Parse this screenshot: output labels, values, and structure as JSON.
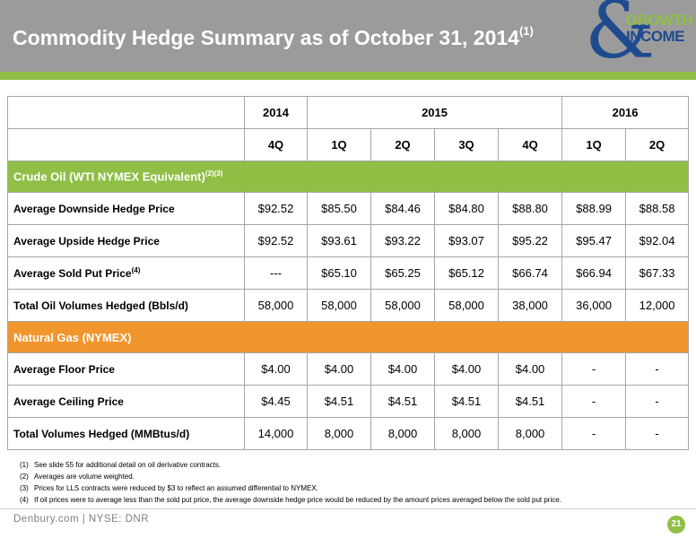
{
  "title": {
    "text": "Commodity Hedge Summary as of October 31, 2014",
    "footnote_mark": "(1)"
  },
  "logo": {
    "symbol": "&",
    "line1": "GROWTH",
    "line2": "INCOME"
  },
  "table": {
    "years": [
      "2014",
      "2015",
      "2016"
    ],
    "quarters": [
      "4Q",
      "1Q",
      "2Q",
      "3Q",
      "4Q",
      "1Q",
      "2Q"
    ],
    "oil_section": {
      "label": "Crude Oil (WTI NYMEX Equivalent)",
      "footnote_mark": "(2)(3)"
    },
    "oil_rows": [
      {
        "label": "Average Downside Hedge Price",
        "mark": "",
        "values": [
          "$92.52",
          "$85.50",
          "$84.46",
          "$84.80",
          "$88.80",
          "$88.99",
          "$88.58"
        ]
      },
      {
        "label": "Average Upside Hedge Price",
        "mark": "",
        "values": [
          "$92.52",
          "$93.61",
          "$93.22",
          "$93.07",
          "$95.22",
          "$95.47",
          "$92.04"
        ]
      },
      {
        "label": "Average Sold Put Price",
        "mark": "(4)",
        "values": [
          "---",
          "$65.10",
          "$65.25",
          "$65.12",
          "$66.74",
          "$66.94",
          "$67.33"
        ]
      },
      {
        "label": "Total Oil Volumes Hedged (Bbls/d)",
        "mark": "",
        "values": [
          "58,000",
          "58,000",
          "58,000",
          "58,000",
          "38,000",
          "36,000",
          "12,000"
        ]
      }
    ],
    "gas_section": {
      "label": "Natural Gas (NYMEX)"
    },
    "gas_rows": [
      {
        "label": "Average Floor Price",
        "values": [
          "$4.00",
          "$4.00",
          "$4.00",
          "$4.00",
          "$4.00",
          "-",
          "-"
        ]
      },
      {
        "label": "Average Ceiling Price",
        "values": [
          "$4.45",
          "$4.51",
          "$4.51",
          "$4.51",
          "$4.51",
          "-",
          "-"
        ]
      },
      {
        "label": "Total Volumes Hedged (MMBtus/d)",
        "values": [
          "14,000",
          "8,000",
          "8,000",
          "8,000",
          "8,000",
          "-",
          "-"
        ]
      }
    ]
  },
  "footnotes": [
    {
      "num": "(1)",
      "text": "See slide 55 for additional detail on oil derivative contracts."
    },
    {
      "num": "(2)",
      "text": "Averages are volume weighted."
    },
    {
      "num": "(3)",
      "text": "Prices for LLS contracts were reduced by $3 to reflect an assumed differential to NYMEX."
    },
    {
      "num": "(4)",
      "text": "If oil prices were to average less than the sold put price, the average downside hedge price would be reduced by the amount prices averaged below the sold put price."
    }
  ],
  "footer": {
    "text": "Denbury.com | NYSE: DNR",
    "page": "21"
  },
  "colors": {
    "header": "#9b9b9b",
    "green": "#8fbf45",
    "orange": "#f0962d",
    "navy": "#1f4b8e"
  }
}
